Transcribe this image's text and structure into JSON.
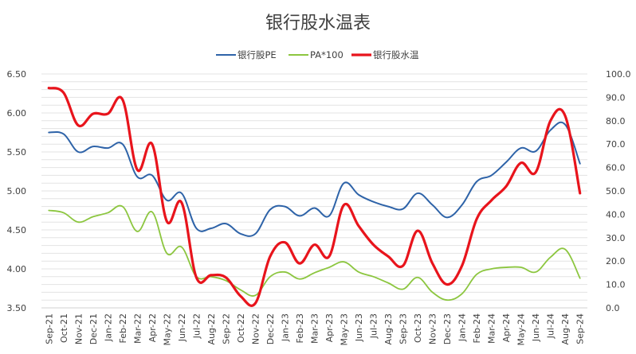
{
  "chart_data": {
    "type": "line",
    "title": "银行股水温表",
    "x": [
      "Sep-21",
      "Oct-21",
      "Nov-21",
      "Dec-21",
      "Jan-22",
      "Feb-22",
      "Mar-22",
      "Apr-22",
      "May-22",
      "Jun-22",
      "Jul-22",
      "Aug-22",
      "Sep-22",
      "Oct-22",
      "Nov-22",
      "Dec-22",
      "Jan-23",
      "Feb-23",
      "Mar-23",
      "Apr-23",
      "May-23",
      "Jun-23",
      "Jul-23",
      "Aug-23",
      "Sep-23",
      "Oct-23",
      "Nov-23",
      "Dec-23",
      "Jan-24",
      "Feb-24",
      "Mar-24",
      "Apr-24",
      "May-24",
      "Jun-24",
      "Jul-24",
      "Aug-24",
      "Sep-24"
    ],
    "left_axis": {
      "min": 3.5,
      "max": 6.5,
      "ticks": [
        "3.50",
        "4.00",
        "4.50",
        "5.00",
        "5.50",
        "6.00",
        "6.50"
      ]
    },
    "right_axis": {
      "min": 0,
      "max": 100,
      "ticks": [
        "0.0",
        "10.0",
        "20.0",
        "30.0",
        "40.0",
        "50.0",
        "60.0",
        "70.0",
        "80.0",
        "90.0",
        "100.0"
      ]
    },
    "grid": true,
    "legend_position": "top",
    "series": [
      {
        "name": "银行股PE",
        "axis": "left",
        "color": "#2e63a8",
        "points": [
          [
            0,
            5.75
          ],
          [
            1,
            5.73
          ],
          [
            2,
            5.5
          ],
          [
            3,
            5.57
          ],
          [
            4,
            5.55
          ],
          [
            5,
            5.6
          ],
          [
            6,
            5.18
          ],
          [
            7,
            5.2
          ],
          [
            8,
            4.88
          ],
          [
            9,
            4.97
          ],
          [
            10,
            4.52
          ],
          [
            11,
            4.52
          ],
          [
            12,
            4.58
          ],
          [
            13,
            4.45
          ],
          [
            14,
            4.45
          ],
          [
            15,
            4.76
          ],
          [
            16,
            4.8
          ],
          [
            17,
            4.68
          ],
          [
            18,
            4.78
          ],
          [
            19,
            4.68
          ],
          [
            20,
            5.1
          ],
          [
            21,
            4.95
          ],
          [
            22,
            4.86
          ],
          [
            23,
            4.8
          ],
          [
            24,
            4.77
          ],
          [
            25,
            4.97
          ],
          [
            26,
            4.82
          ],
          [
            27,
            4.66
          ],
          [
            28,
            4.82
          ],
          [
            29,
            5.12
          ],
          [
            30,
            5.2
          ],
          [
            31,
            5.37
          ],
          [
            32,
            5.55
          ],
          [
            33,
            5.51
          ],
          [
            34,
            5.78
          ],
          [
            35,
            5.85
          ],
          [
            36,
            5.35
          ]
        ]
      },
      {
        "name": "PA*100",
        "axis": "left",
        "color": "#8cc63f",
        "points": [
          [
            0,
            4.75
          ],
          [
            1,
            4.72
          ],
          [
            2,
            4.6
          ],
          [
            3,
            4.67
          ],
          [
            4,
            4.72
          ],
          [
            5,
            4.8
          ],
          [
            6,
            4.48
          ],
          [
            7,
            4.73
          ],
          [
            8,
            4.2
          ],
          [
            9,
            4.28
          ],
          [
            10,
            3.9
          ],
          [
            11,
            3.9
          ],
          [
            12,
            3.85
          ],
          [
            13,
            3.73
          ],
          [
            14,
            3.66
          ],
          [
            15,
            3.9
          ],
          [
            16,
            3.96
          ],
          [
            17,
            3.87
          ],
          [
            18,
            3.95
          ],
          [
            19,
            4.02
          ],
          [
            20,
            4.09
          ],
          [
            21,
            3.96
          ],
          [
            22,
            3.9
          ],
          [
            23,
            3.82
          ],
          [
            24,
            3.74
          ],
          [
            25,
            3.89
          ],
          [
            26,
            3.7
          ],
          [
            27,
            3.6
          ],
          [
            28,
            3.68
          ],
          [
            29,
            3.93
          ],
          [
            30,
            4.0
          ],
          [
            31,
            4.02
          ],
          [
            32,
            4.02
          ],
          [
            33,
            3.96
          ],
          [
            34,
            4.15
          ],
          [
            35,
            4.25
          ],
          [
            36,
            3.88
          ]
        ]
      },
      {
        "name": "银行股水温",
        "axis": "right",
        "color": "#e8141c",
        "points": [
          [
            0,
            94
          ],
          [
            1,
            92
          ],
          [
            2,
            78
          ],
          [
            3,
            83
          ],
          [
            4,
            83
          ],
          [
            5,
            89
          ],
          [
            6,
            59
          ],
          [
            7,
            70
          ],
          [
            8,
            37
          ],
          [
            9,
            45
          ],
          [
            10,
            13
          ],
          [
            11,
            14
          ],
          [
            12,
            13
          ],
          [
            13,
            5
          ],
          [
            14,
            2
          ],
          [
            15,
            22
          ],
          [
            16,
            28
          ],
          [
            17,
            19
          ],
          [
            18,
            27
          ],
          [
            19,
            22
          ],
          [
            20,
            44
          ],
          [
            21,
            35
          ],
          [
            22,
            27
          ],
          [
            23,
            22
          ],
          [
            24,
            18
          ],
          [
            25,
            33
          ],
          [
            26,
            19
          ],
          [
            27,
            10
          ],
          [
            28,
            18
          ],
          [
            29,
            38
          ],
          [
            30,
            46
          ],
          [
            31,
            52
          ],
          [
            32,
            62
          ],
          [
            33,
            58
          ],
          [
            34,
            80
          ],
          [
            35,
            82
          ],
          [
            36,
            49
          ]
        ]
      }
    ]
  }
}
